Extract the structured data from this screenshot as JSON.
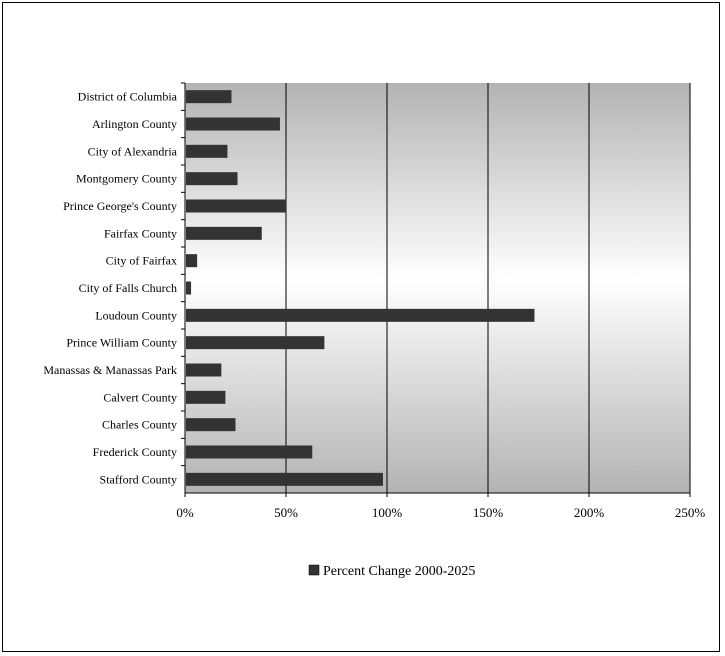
{
  "chart_data": {
    "type": "bar",
    "orientation": "horizontal",
    "categories": [
      "District of Columbia",
      "Arlington County",
      "City of Alexandria",
      "Montgomery County",
      "Prince George's County",
      "Fairfax County",
      "City of Fairfax",
      "City of Falls Church",
      "Loudoun County",
      "Prince William County",
      "Manassas & Manassas Park",
      "Calvert County",
      "Charles County",
      "Frederick County",
      "Stafford County"
    ],
    "series": [
      {
        "name": "Percent Change 2000-2025",
        "color": "#333333",
        "values": [
          23,
          47,
          21,
          26,
          50,
          38,
          6,
          3,
          173,
          69,
          18,
          20,
          25,
          63,
          98
        ]
      }
    ],
    "x_ticks": [
      "0%",
      "50%",
      "100%",
      "150%",
      "200%",
      "250%"
    ],
    "xlim": [
      0,
      250
    ],
    "grid": "vertical",
    "legend": "bottom",
    "plot_background": "gray-gradient"
  }
}
